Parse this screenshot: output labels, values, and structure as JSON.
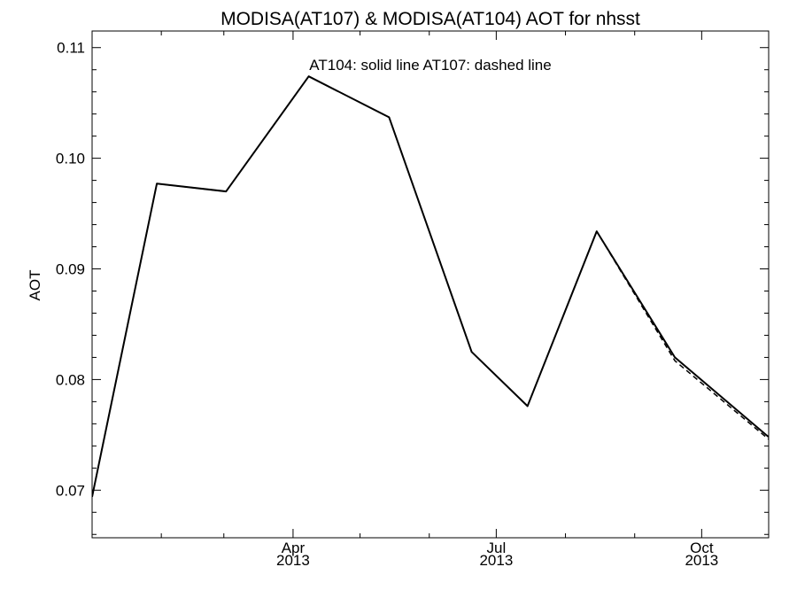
{
  "chart_data": {
    "type": "line",
    "title": "MODISA(AT107) & MODISA(AT104)  AOT for nhsst",
    "xlabel": "",
    "ylabel": "AOT",
    "annotation": "AT104: solid line   AT107: dashed line",
    "xlim": [
      "2013-01-01",
      "2013-10-31"
    ],
    "ylim": [
      0.0657,
      0.1115
    ],
    "grid": false,
    "y_ticks": [
      {
        "value": 0.07,
        "label": "0.07"
      },
      {
        "value": 0.08,
        "label": "0.08"
      },
      {
        "value": 0.09,
        "label": "0.09"
      },
      {
        "value": 0.1,
        "label": "0.10"
      },
      {
        "value": 0.11,
        "label": "0.11"
      }
    ],
    "x_ticks": [
      {
        "date": "2013-04-01",
        "label": [
          "Apr",
          "2013"
        ]
      },
      {
        "date": "2013-07-01",
        "label": [
          "Jul",
          "2013"
        ]
      },
      {
        "date": "2013-10-01",
        "label": [
          "Oct",
          "2013"
        ]
      }
    ],
    "x_minor_ticks": [
      "2013-02-01",
      "2013-03-01",
      "2013-05-01",
      "2013-06-01",
      "2013-08-01",
      "2013-09-01"
    ],
    "series": [
      {
        "name": "AT104",
        "style": "solid",
        "color": "#000000",
        "points": [
          {
            "x": "2013-01-01",
            "y": 0.0694
          },
          {
            "x": "2013-01-30",
            "y": 0.0977
          },
          {
            "x": "2013-03-02",
            "y": 0.097
          },
          {
            "x": "2013-04-08",
            "y": 0.1074
          },
          {
            "x": "2013-05-14",
            "y": 0.1037
          },
          {
            "x": "2013-06-20",
            "y": 0.0825
          },
          {
            "x": "2013-07-15",
            "y": 0.0776
          },
          {
            "x": "2013-08-15",
            "y": 0.0934
          },
          {
            "x": "2013-09-19",
            "y": 0.082
          },
          {
            "x": "2013-10-31",
            "y": 0.0748
          }
        ]
      },
      {
        "name": "AT107",
        "style": "dashed",
        "color": "#000000",
        "points": [
          {
            "x": "2013-01-01",
            "y": 0.0694
          },
          {
            "x": "2013-01-30",
            "y": 0.0977
          },
          {
            "x": "2013-03-02",
            "y": 0.097
          },
          {
            "x": "2013-04-08",
            "y": 0.1074
          },
          {
            "x": "2013-05-14",
            "y": 0.1037
          },
          {
            "x": "2013-06-20",
            "y": 0.0825
          },
          {
            "x": "2013-07-15",
            "y": 0.0776
          },
          {
            "x": "2013-08-15",
            "y": 0.0934
          },
          {
            "x": "2013-09-19",
            "y": 0.0817
          },
          {
            "x": "2013-10-31",
            "y": 0.0746
          }
        ]
      }
    ]
  }
}
